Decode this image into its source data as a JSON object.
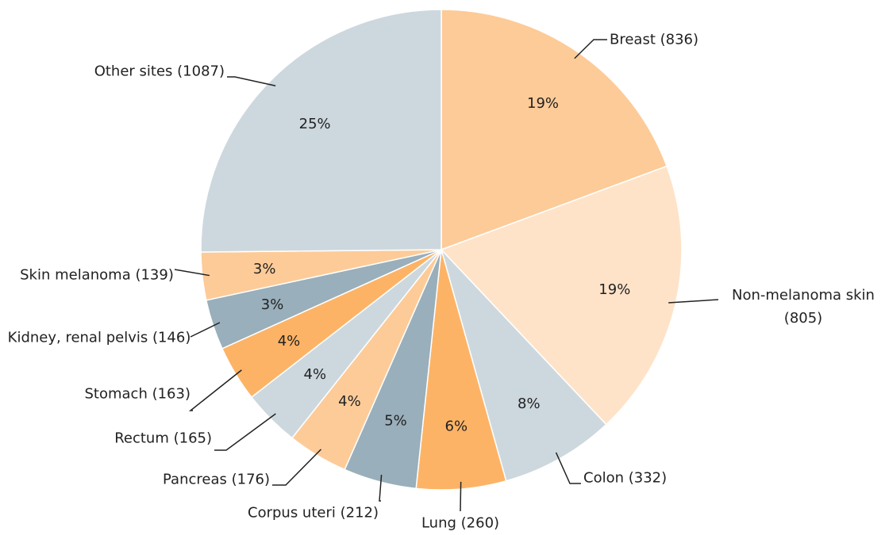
{
  "chart_data": {
    "type": "pie",
    "categories": [
      "Breast (836)",
      "Non-melanoma skin (805)",
      "Colon (332)",
      "Lung (260)",
      "Corpus uteri (212)",
      "Pancreas (176)",
      "Rectum (165)",
      "Stomach (163)",
      "Kidney, renal pelvis (146)",
      "Skin melanoma (139)",
      "Other sites (1087)"
    ],
    "values": [
      19.35,
      18.63,
      7.68,
      6.02,
      4.91,
      4.07,
      3.82,
      3.77,
      3.38,
      3.22,
      25.16
    ],
    "value_labels": [
      "19%",
      "19%",
      "8%",
      "6%",
      "5%",
      "4%",
      "4%",
      "4%",
      "3%",
      "3%",
      "25%"
    ],
    "colors": [
      "#fdcb98",
      "#fee3c9",
      "#cdd8de",
      "#fdb366",
      "#99afbb",
      "#fdcb98",
      "#cdd8de",
      "#fdb366",
      "#99afbb",
      "#fdcb98",
      "#cdd8de"
    ]
  }
}
